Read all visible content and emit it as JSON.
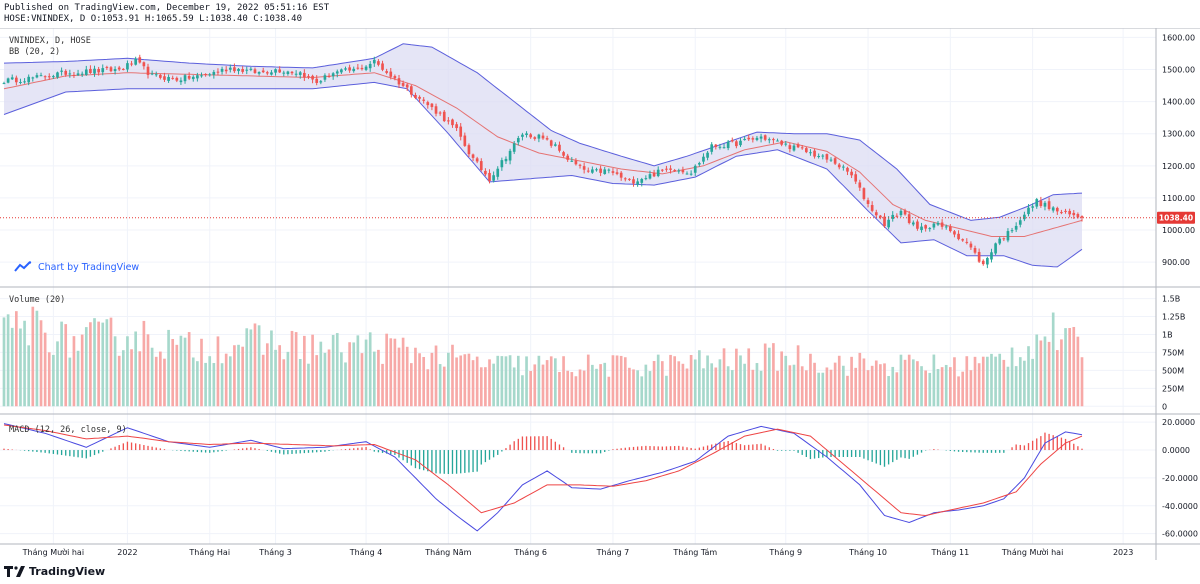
{
  "header": {
    "published": "Published on TradingView.com, December 19, 2022 05:51:16 EST",
    "ohlc": "HOSE:VNINDEX, D O:1053.91 H:1065.59 L:1038.40 C:1038.40"
  },
  "pane_labels": {
    "price_title": "VNINDEX, D, HOSE",
    "bb": "BB (20, 2)",
    "volume": "Volume (20)",
    "macd": "MACD (12, 26, close, 9)"
  },
  "chart_by": "Chart by TradingView",
  "footer_brand": "TradingView",
  "colors": {
    "up": "#26a69a",
    "down": "#ef5350",
    "up_vol": "#a6d8cb",
    "down_vol": "#f7a9a7",
    "bb_band": "#5b5fdc",
    "bb_fill": "#dcdcf3",
    "basis": "#e57373",
    "macd": "#4a4ae0",
    "signal": "#ee4444",
    "last_price": "#e53935"
  },
  "chart_data": [
    {
      "type": "candlestick",
      "title": "VNINDEX, D, HOSE",
      "ylim": [
        835,
        1620
      ],
      "y_ticks": [
        "1600.00",
        "1500.00",
        "1400.00",
        "1300.00",
        "1200.00",
        "1100.00",
        "1000.00",
        "900.00"
      ],
      "y_tick_values": [
        1600,
        1500,
        1400,
        1300,
        1200,
        1100,
        1000,
        900
      ],
      "x_labels": [
        "Tháng Mười hai",
        "2022",
        "Tháng Hai",
        "Tháng 3",
        "Tháng 4",
        "Tháng Năm",
        "Tháng 6",
        "Tháng 7",
        "Tháng Tám",
        "Tháng 9",
        "Tháng 10",
        "Tháng 11",
        "Tháng Mười hai",
        "2023"
      ],
      "x_label_positions": [
        12,
        30,
        50,
        66,
        88,
        108,
        128,
        148,
        168,
        190,
        210,
        230,
        250,
        272
      ],
      "last_price": "1038.40",
      "last_close_value": 1038.4,
      "close_anchors": [
        [
          0,
          1465
        ],
        [
          8,
          1475
        ],
        [
          15,
          1490
        ],
        [
          22,
          1495
        ],
        [
          28,
          1500
        ],
        [
          32,
          1525
        ],
        [
          36,
          1480
        ],
        [
          42,
          1470
        ],
        [
          48,
          1480
        ],
        [
          55,
          1505
        ],
        [
          62,
          1490
        ],
        [
          66,
          1500
        ],
        [
          72,
          1490
        ],
        [
          76,
          1460
        ],
        [
          80,
          1490
        ],
        [
          86,
          1500
        ],
        [
          90,
          1525
        ],
        [
          95,
          1470
        ],
        [
          100,
          1420
        ],
        [
          106,
          1360
        ],
        [
          110,
          1310
        ],
        [
          114,
          1220
        ],
        [
          118,
          1160
        ],
        [
          122,
          1230
        ],
        [
          126,
          1300
        ],
        [
          130,
          1290
        ],
        [
          134,
          1260
        ],
        [
          138,
          1210
        ],
        [
          142,
          1180
        ],
        [
          147,
          1185
        ],
        [
          152,
          1150
        ],
        [
          157,
          1170
        ],
        [
          162,
          1195
        ],
        [
          167,
          1180
        ],
        [
          172,
          1260
        ],
        [
          178,
          1270
        ],
        [
          184,
          1290
        ],
        [
          190,
          1265
        ],
        [
          196,
          1240
        ],
        [
          202,
          1210
        ],
        [
          206,
          1170
        ],
        [
          210,
          1080
        ],
        [
          214,
          1020
        ],
        [
          218,
          1060
        ],
        [
          222,
          1000
        ],
        [
          226,
          1020
        ],
        [
          230,
          1000
        ],
        [
          234,
          960
        ],
        [
          238,
          890
        ],
        [
          241,
          960
        ],
        [
          244,
          990
        ],
        [
          248,
          1050
        ],
        [
          251,
          1090
        ],
        [
          254,
          1070
        ],
        [
          258,
          1050
        ],
        [
          262,
          1038.4
        ]
      ],
      "bb_upper_anchors": [
        [
          0,
          1520
        ],
        [
          15,
          1525
        ],
        [
          30,
          1535
        ],
        [
          45,
          1520
        ],
        [
          60,
          1510
        ],
        [
          75,
          1505
        ],
        [
          90,
          1535
        ],
        [
          97,
          1580
        ],
        [
          104,
          1570
        ],
        [
          115,
          1490
        ],
        [
          125,
          1390
        ],
        [
          133,
          1310
        ],
        [
          140,
          1270
        ],
        [
          150,
          1230
        ],
        [
          158,
          1200
        ],
        [
          166,
          1230
        ],
        [
          175,
          1270
        ],
        [
          183,
          1305
        ],
        [
          192,
          1300
        ],
        [
          200,
          1300
        ],
        [
          208,
          1280
        ],
        [
          217,
          1190
        ],
        [
          225,
          1080
        ],
        [
          235,
          1030
        ],
        [
          242,
          1040
        ],
        [
          249,
          1075
        ],
        [
          255,
          1110
        ],
        [
          262,
          1115
        ]
      ],
      "bb_lower_anchors": [
        [
          0,
          1360
        ],
        [
          15,
          1430
        ],
        [
          30,
          1440
        ],
        [
          45,
          1440
        ],
        [
          60,
          1440
        ],
        [
          75,
          1440
        ],
        [
          90,
          1460
        ],
        [
          98,
          1440
        ],
        [
          108,
          1300
        ],
        [
          118,
          1150
        ],
        [
          128,
          1160
        ],
        [
          138,
          1170
        ],
        [
          148,
          1145
        ],
        [
          158,
          1140
        ],
        [
          168,
          1165
        ],
        [
          178,
          1230
        ],
        [
          188,
          1250
        ],
        [
          200,
          1190
        ],
        [
          210,
          1060
        ],
        [
          218,
          960
        ],
        [
          226,
          970
        ],
        [
          234,
          920
        ],
        [
          243,
          920
        ],
        [
          250,
          890
        ],
        [
          256,
          885
        ],
        [
          262,
          940
        ]
      ],
      "bb_basis_anchors": [
        [
          0,
          1440
        ],
        [
          15,
          1480
        ],
        [
          30,
          1490
        ],
        [
          45,
          1485
        ],
        [
          60,
          1480
        ],
        [
          75,
          1475
        ],
        [
          90,
          1490
        ],
        [
          100,
          1450
        ],
        [
          110,
          1380
        ],
        [
          120,
          1290
        ],
        [
          130,
          1240
        ],
        [
          140,
          1215
        ],
        [
          150,
          1190
        ],
        [
          160,
          1175
        ],
        [
          170,
          1200
        ],
        [
          180,
          1250
        ],
        [
          190,
          1275
        ],
        [
          200,
          1245
        ],
        [
          208,
          1180
        ],
        [
          216,
          1080
        ],
        [
          224,
          1030
        ],
        [
          232,
          1005
        ],
        [
          240,
          980
        ],
        [
          248,
          980
        ],
        [
          255,
          1005
        ],
        [
          262,
          1030
        ]
      ]
    },
    {
      "type": "bar",
      "title": "Volume (20)",
      "ylim": [
        -80000000,
        1620000000
      ],
      "y_ticks": [
        "1.5B",
        "1.25B",
        "1B",
        "750M",
        "500M",
        "250M",
        "0"
      ],
      "y_tick_values": [
        1500000000,
        1250000000,
        1000000000,
        750000000,
        500000000,
        250000000,
        0
      ],
      "anchors": [
        [
          0,
          1000000000
        ],
        [
          8,
          1150000000
        ],
        [
          15,
          900000000
        ],
        [
          22,
          950000000
        ],
        [
          30,
          1000000000
        ],
        [
          36,
          950000000
        ],
        [
          44,
          800000000
        ],
        [
          52,
          850000000
        ],
        [
          60,
          900000000
        ],
        [
          70,
          850000000
        ],
        [
          80,
          800000000
        ],
        [
          90,
          850000000
        ],
        [
          100,
          750000000
        ],
        [
          110,
          650000000
        ],
        [
          120,
          580000000
        ],
        [
          130,
          580000000
        ],
        [
          140,
          560000000
        ],
        [
          150,
          560000000
        ],
        [
          160,
          580000000
        ],
        [
          170,
          620000000
        ],
        [
          180,
          650000000
        ],
        [
          190,
          700000000
        ],
        [
          200,
          620000000
        ],
        [
          210,
          580000000
        ],
        [
          220,
          580000000
        ],
        [
          230,
          560000000
        ],
        [
          240,
          620000000
        ],
        [
          248,
          800000000
        ],
        [
          254,
          1050000000
        ],
        [
          258,
          900000000
        ],
        [
          262,
          800000000
        ]
      ]
    },
    {
      "type": "line",
      "title": "MACD (12, 26, close, 9)",
      "ylim": [
        -66000,
        23000
      ],
      "y_ticks": [
        "20.0000",
        "0.0000",
        "-20.0000",
        "-40.0000",
        "-60.0000"
      ],
      "y_tick_values": [
        20000,
        0,
        -20000,
        -40000,
        -60000
      ],
      "series": [
        {
          "name": "MACD",
          "anchors": [
            [
              0,
              19000
            ],
            [
              10,
              12000
            ],
            [
              20,
              2000
            ],
            [
              30,
              16000
            ],
            [
              40,
              6000
            ],
            [
              50,
              2000
            ],
            [
              60,
              7000
            ],
            [
              68,
              1000
            ],
            [
              78,
              2000
            ],
            [
              88,
              6000
            ],
            [
              95,
              -5000
            ],
            [
              100,
              -20000
            ],
            [
              105,
              -35000
            ],
            [
              110,
              -47000
            ],
            [
              115,
              -58000
            ],
            [
              120,
              -45000
            ],
            [
              126,
              -25000
            ],
            [
              132,
              -15000
            ],
            [
              138,
              -27000
            ],
            [
              145,
              -28000
            ],
            [
              152,
              -22000
            ],
            [
              160,
              -16000
            ],
            [
              168,
              -8000
            ],
            [
              176,
              10000
            ],
            [
              184,
              17000
            ],
            [
              192,
              12000
            ],
            [
              200,
              -5000
            ],
            [
              208,
              -25000
            ],
            [
              214,
              -47000
            ],
            [
              220,
              -52000
            ],
            [
              226,
              -45000
            ],
            [
              232,
              -43000
            ],
            [
              238,
              -40000
            ],
            [
              243,
              -35000
            ],
            [
              248,
              -20000
            ],
            [
              253,
              5000
            ],
            [
              258,
              13000
            ],
            [
              262,
              11000
            ]
          ]
        },
        {
          "name": "Signal",
          "anchors": [
            [
              0,
              18000
            ],
            [
              10,
              14000
            ],
            [
              20,
              8000
            ],
            [
              30,
              10000
            ],
            [
              40,
              6000
            ],
            [
              50,
              4000
            ],
            [
              60,
              5000
            ],
            [
              70,
              4000
            ],
            [
              80,
              3000
            ],
            [
              90,
              4000
            ],
            [
              100,
              -7000
            ],
            [
              108,
              -25000
            ],
            [
              116,
              -45000
            ],
            [
              124,
              -38000
            ],
            [
              132,
              -25000
            ],
            [
              140,
              -25000
            ],
            [
              148,
              -26000
            ],
            [
              156,
              -22000
            ],
            [
              164,
              -15000
            ],
            [
              172,
              -3000
            ],
            [
              180,
              10000
            ],
            [
              188,
              15000
            ],
            [
              196,
              10000
            ],
            [
              204,
              -10000
            ],
            [
              212,
              -30000
            ],
            [
              218,
              -45000
            ],
            [
              224,
              -47000
            ],
            [
              230,
              -43000
            ],
            [
              238,
              -38000
            ],
            [
              246,
              -30000
            ],
            [
              252,
              -10000
            ],
            [
              258,
              5000
            ],
            [
              262,
              10000
            ]
          ]
        }
      ]
    }
  ]
}
